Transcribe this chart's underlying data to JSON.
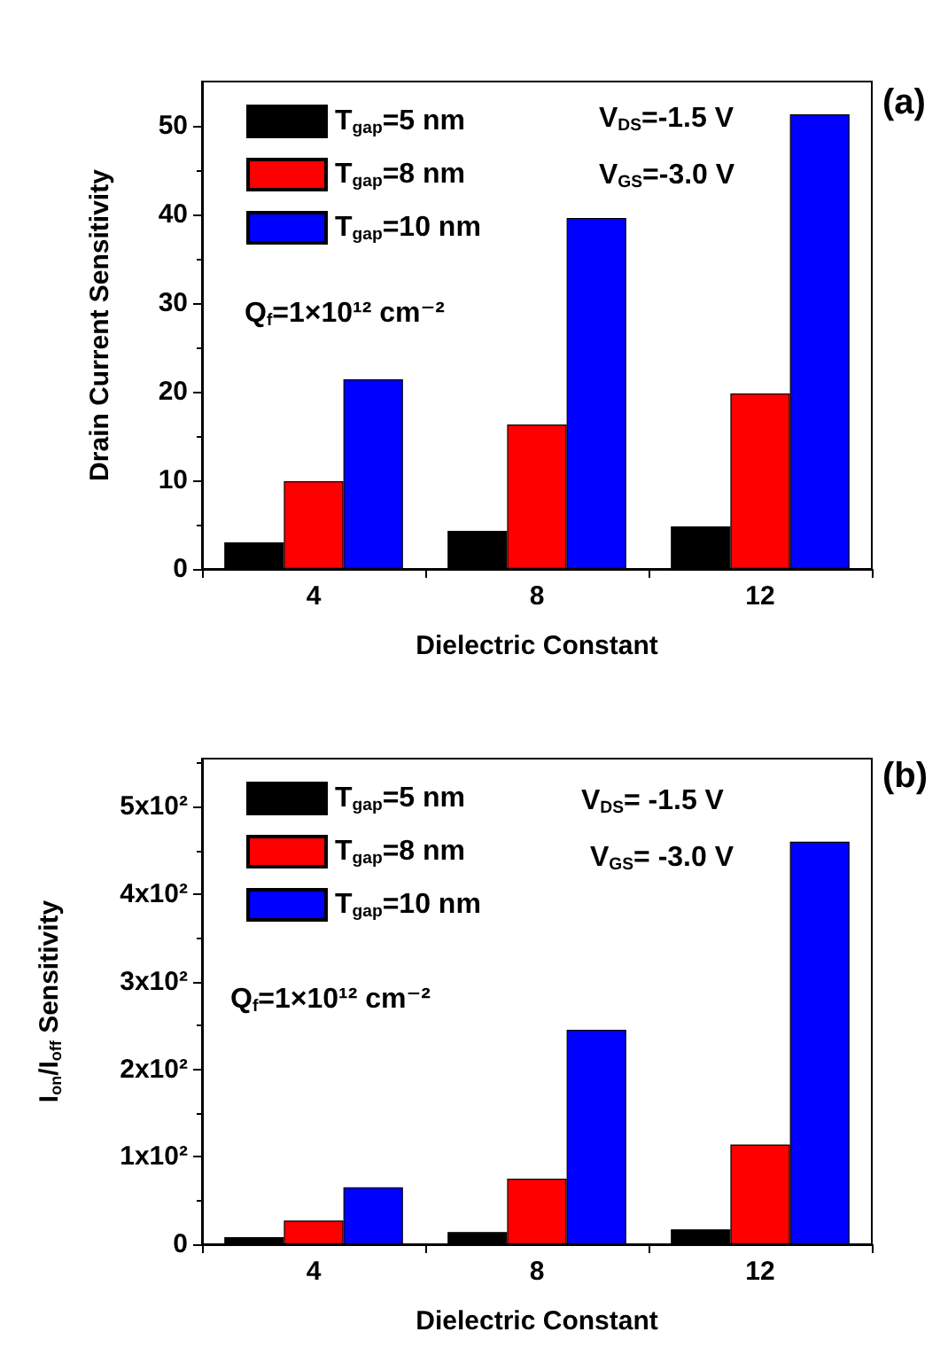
{
  "chart_data": [
    {
      "type": "bar",
      "xlabel": "Dielectric Constant",
      "ylabel": "Drain Current Sensitivity",
      "categories": [
        "4",
        "8",
        "12"
      ],
      "series": [
        {
          "name": "T$_{gap}$=5 nm",
          "color": "#000000",
          "values": [
            3.0,
            4.3,
            4.8
          ]
        },
        {
          "name": "T$_{gap}$=8 nm",
          "color": "#ff0000",
          "values": [
            9.9,
            16.3,
            19.8
          ]
        },
        {
          "name": "T$_{gap}$=10 nm",
          "color": "#0000ff",
          "values": [
            21.4,
            39.6,
            51.3
          ]
        }
      ],
      "ylim": [
        0,
        55
      ],
      "yticks": [
        0,
        10,
        20,
        30,
        40,
        50
      ],
      "grid": false,
      "legend": "top left",
      "annotations": [
        "V$_{DS}$=-1.5 V",
        "V$_{GS}$=-3.0 V",
        "Q$_{f}$=1×10¹² cm⁻²",
        "(a)"
      ]
    },
    {
      "type": "bar",
      "xlabel": "Dielectric Constant",
      "ylabel": "I$_{on}$/I$_{off}$ Sensitivity",
      "categories": [
        "4",
        "8",
        "12"
      ],
      "series": [
        {
          "name": "T$_{gap}$=5 nm",
          "color": "#000000",
          "values": [
            8,
            14,
            17
          ]
        },
        {
          "name": "T$_{gap}$=8 nm",
          "color": "#ff0000",
          "values": [
            27,
            75,
            114
          ]
        },
        {
          "name": "T$_{gap}$=10 nm",
          "color": "#0000ff",
          "values": [
            65,
            245,
            460
          ]
        }
      ],
      "ylim": [
        0,
        555
      ],
      "yticks": [
        0,
        {
          "value": 100,
          "label": "1x10²"
        },
        {
          "value": 200,
          "label": "2x10²"
        },
        {
          "value": 300,
          "label": "3x10²"
        },
        {
          "value": 400,
          "label": "4x10²"
        },
        {
          "value": 500,
          "label": "5x10²"
        }
      ],
      "grid": false,
      "legend": "top left",
      "annotations": [
        "V$_{DS}$= -1.5 V",
        "V$_{GS}$= -3.0 V",
        "Q$_{f}$=1×10¹² cm⁻²",
        "(b)"
      ]
    }
  ]
}
